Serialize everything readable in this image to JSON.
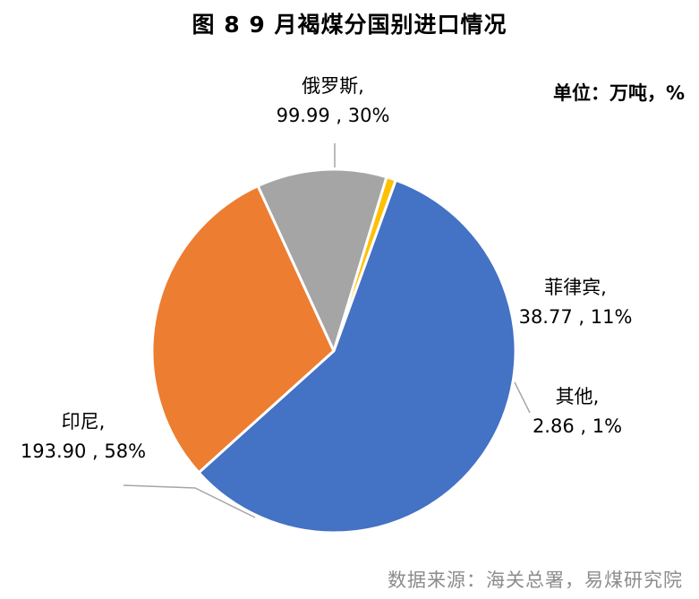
{
  "title": "图 8  9 月褐煤分国别进口情况",
  "unit_note": "单位：万吨，%",
  "source": "数据来源：海关总署，易煤研究院",
  "chart_data": {
    "type": "pie",
    "slices": [
      {
        "name": "印尼",
        "value": 193.9,
        "percent": 58,
        "value_label": "193.90 , 58%",
        "color": "#4472C4"
      },
      {
        "name": "俄罗斯",
        "value": 99.99,
        "percent": 30,
        "value_label": "99.99 , 30%",
        "color": "#ED7D31"
      },
      {
        "name": "菲律宾",
        "value": 38.77,
        "percent": 11,
        "value_label": "38.77 , 11%",
        "color": "#A5A5A5"
      },
      {
        "name": "其他",
        "value": 2.86,
        "percent": 1,
        "value_label": "2.86 , 1%",
        "color": "#FFC000"
      }
    ]
  }
}
